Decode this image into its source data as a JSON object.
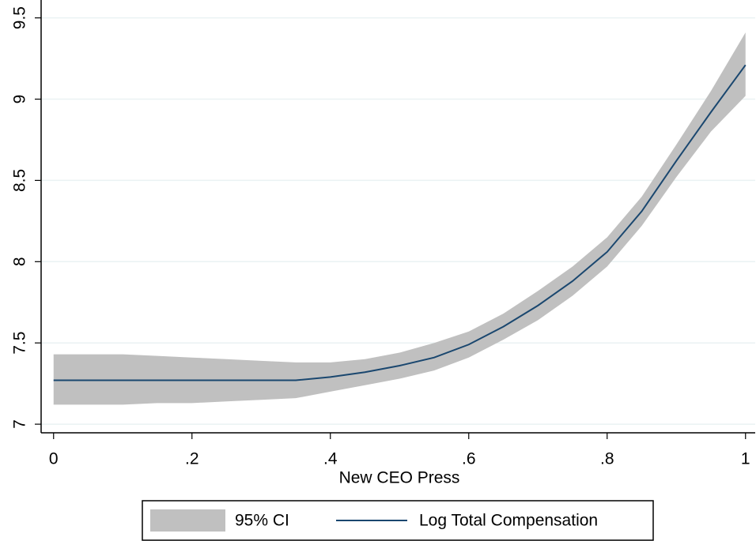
{
  "chart_data": {
    "type": "line",
    "x_label": "New CEO Press",
    "x": [
      0,
      0.05,
      0.1,
      0.15,
      0.2,
      0.25,
      0.3,
      0.35,
      0.4,
      0.45,
      0.5,
      0.55,
      0.6,
      0.65,
      0.7,
      0.75,
      0.8,
      0.85,
      0.9,
      0.95,
      1
    ],
    "series": [
      {
        "name": "95% CI",
        "color": "#c0c0c0",
        "upper": [
          7.43,
          7.43,
          7.43,
          7.42,
          7.41,
          7.4,
          7.39,
          7.38,
          7.38,
          7.4,
          7.44,
          7.5,
          7.57,
          7.68,
          7.82,
          7.97,
          8.15,
          8.4,
          8.72,
          9.05,
          9.41
        ],
        "lower": [
          7.12,
          7.12,
          7.12,
          7.13,
          7.13,
          7.14,
          7.15,
          7.16,
          7.2,
          7.24,
          7.28,
          7.33,
          7.41,
          7.52,
          7.64,
          7.79,
          7.97,
          8.22,
          8.52,
          8.8,
          9.02
        ]
      },
      {
        "name": "Log Total Compensation",
        "color": "#1a476f",
        "values": [
          7.27,
          7.27,
          7.27,
          7.27,
          7.27,
          7.27,
          7.27,
          7.27,
          7.29,
          7.32,
          7.36,
          7.41,
          7.49,
          7.6,
          7.73,
          7.88,
          8.06,
          8.31,
          8.62,
          8.92,
          9.21
        ]
      }
    ],
    "xlim": [
      -0.018,
      1.014
    ],
    "ylim": [
      6.947,
      9.61
    ],
    "xticks": [
      0,
      {
        "value": 0.2,
        "label": ".2"
      },
      {
        "value": 0.4,
        "label": ".4"
      },
      {
        "value": 0.6,
        "label": ".6"
      },
      {
        "value": 0.8,
        "label": ".8"
      },
      1
    ],
    "yticks": [
      7,
      7.5,
      8,
      8.5,
      9,
      9.5
    ],
    "grid": true,
    "legend": "bottom"
  }
}
